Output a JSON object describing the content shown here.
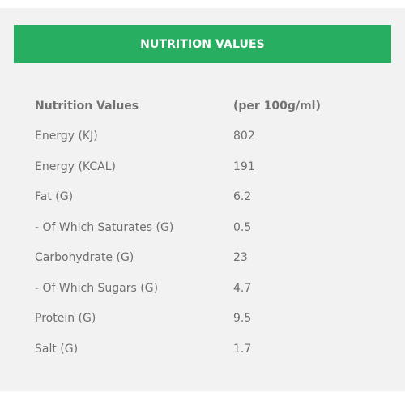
{
  "header": {
    "title": "NUTRITION VALUES"
  },
  "table": {
    "columns": [
      "Nutrition Values",
      "(per 100g/ml)"
    ],
    "rows": [
      {
        "name": "Energy (KJ)",
        "value": "802"
      },
      {
        "name": "Energy (KCAL)",
        "value": "191"
      },
      {
        "name": "Fat (G)",
        "value": "6.2"
      },
      {
        "name": "- Of Which Saturates (G)",
        "value": "0.5"
      },
      {
        "name": "Carbohydrate (G)",
        "value": "23"
      },
      {
        "name": "- Of Which Sugars (G)",
        "value": "4.7"
      },
      {
        "name": "Protein (G)",
        "value": "9.5"
      },
      {
        "name": "Salt (G)",
        "value": "1.7"
      }
    ]
  },
  "colors": {
    "accent": "#27ae60",
    "panel_background": "#f2f2f2",
    "text": "#6f6f6f"
  }
}
